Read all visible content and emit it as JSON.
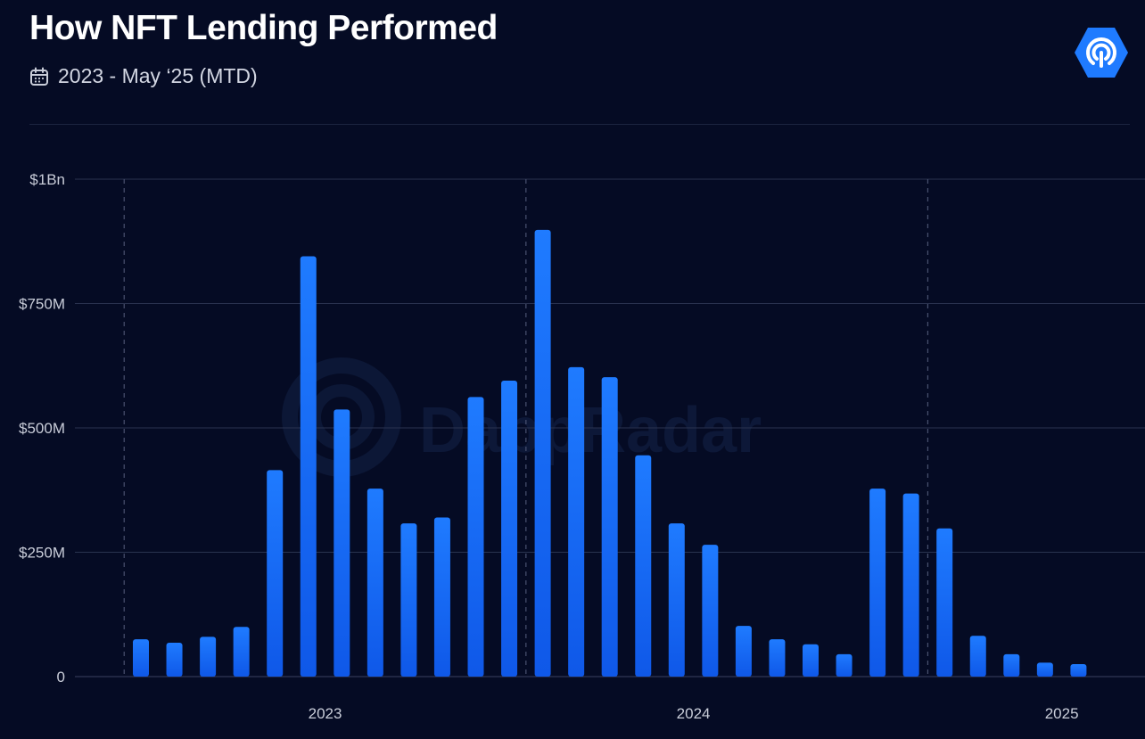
{
  "header": {
    "title": "How NFT Lending Performed",
    "period": "2023 - May ‘25 (MTD)"
  },
  "brand": {
    "logo_icon": "dappradar-logo-icon",
    "watermark": "DappRadar",
    "accent": "#1f7bff",
    "accent_dark": "#0f58e8"
  },
  "chart_data": {
    "type": "bar",
    "title": "How NFT Lending Performed",
    "subtitle": "2023 - May ‘25 (MTD)",
    "xlabel": "",
    "ylabel": "",
    "ylim": [
      0,
      1000000000
    ],
    "y_ticks": [
      {
        "value": 0,
        "label": "0"
      },
      {
        "value": 250000000,
        "label": "$250M"
      },
      {
        "value": 500000000,
        "label": "$500M"
      },
      {
        "value": 750000000,
        "label": "$750M"
      },
      {
        "value": 1000000000,
        "label": "$1Bn"
      }
    ],
    "x_ticks": [
      {
        "index": 5.5,
        "label": "2023"
      },
      {
        "index": 16.5,
        "label": "2024"
      },
      {
        "index": 27.5,
        "label": "2025"
      }
    ],
    "year_dividers": [
      -0.5,
      11.5,
      23.5
    ],
    "grid": true,
    "legend": "none",
    "values": [
      75000000,
      68000000,
      80000000,
      100000000,
      415000000,
      845000000,
      537000000,
      378000000,
      308000000,
      320000000,
      562000000,
      595000000,
      898000000,
      622000000,
      602000000,
      445000000,
      308000000,
      265000000,
      102000000,
      75000000,
      65000000,
      45000000,
      378000000,
      368000000,
      298000000,
      82000000,
      45000000,
      28000000,
      25000000
    ]
  }
}
